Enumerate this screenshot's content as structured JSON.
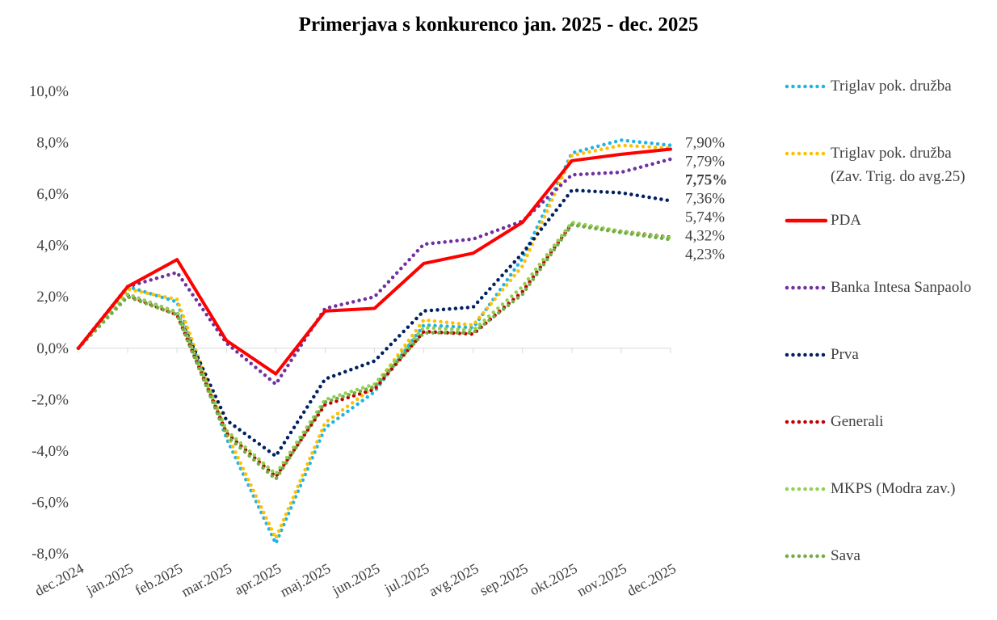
{
  "chart_data": {
    "type": "line",
    "title": "Primerjava s konkurenco jan. 2025 - dec. 2025",
    "categories": [
      "dec.2024",
      "jan.2025",
      "feb.2025",
      "mar.2025",
      "apr.2025",
      "maj.2025",
      "jun.2025",
      "jul.2025",
      "avg.2025",
      "sep.2025",
      "okt.2025",
      "nov.2025",
      "dec.2025"
    ],
    "ylim": [
      -8,
      10
    ],
    "yticks": [
      {
        "value": -8,
        "label": "-8,0%"
      },
      {
        "value": -6,
        "label": "-6,0%"
      },
      {
        "value": -4,
        "label": "-4,0%"
      },
      {
        "value": -2,
        "label": "-2,0%"
      },
      {
        "value": 0,
        "label": "0,0%"
      },
      {
        "value": 2,
        "label": "2,0%"
      },
      {
        "value": 4,
        "label": "4,0%"
      },
      {
        "value": 6,
        "label": "6,0%"
      },
      {
        "value": 8,
        "label": "8,0%"
      },
      {
        "value": 10,
        "label": "10,0%"
      }
    ],
    "legend": "right",
    "series": [
      {
        "name": "Triglav pok. družba",
        "color": "#1fb4e6",
        "line_style": "dotted",
        "values": [
          0,
          2.4,
          1.8,
          -3.5,
          -7.6,
          -3.1,
          -1.7,
          0.9,
          0.8,
          3.5,
          7.6,
          8.1,
          7.9
        ],
        "value_labels": [
          null,
          null,
          null,
          null,
          null,
          null,
          null,
          null,
          null,
          null,
          null,
          null,
          "7,90%"
        ]
      },
      {
        "name": "Triglav pok. družba (Zav. Trig. do avg.25)",
        "color": "#ffc000",
        "line_style": "dotted",
        "values": [
          0,
          2.3,
          1.9,
          -3.3,
          -7.4,
          -2.9,
          -1.5,
          1.1,
          0.9,
          3.2,
          7.5,
          7.9,
          7.79
        ],
        "value_labels": [
          null,
          null,
          null,
          null,
          null,
          null,
          null,
          null,
          null,
          null,
          null,
          null,
          "7,79%"
        ]
      },
      {
        "name": "PDA",
        "color": "#ff0000",
        "line_style": "solid",
        "values": [
          0,
          2.4,
          3.45,
          0.3,
          -1.0,
          1.45,
          1.55,
          3.3,
          3.7,
          4.9,
          7.3,
          7.55,
          7.75
        ],
        "value_labels": [
          null,
          null,
          null,
          null,
          null,
          null,
          null,
          null,
          null,
          null,
          null,
          null,
          "7,75%"
        ]
      },
      {
        "name": "Banka Intesa Sanpaolo",
        "color": "#7030a0",
        "line_style": "dotted",
        "values": [
          0,
          2.4,
          2.95,
          0.2,
          -1.4,
          1.55,
          2.0,
          4.05,
          4.25,
          4.95,
          6.75,
          6.85,
          7.36
        ],
        "value_labels": [
          null,
          null,
          null,
          null,
          null,
          null,
          null,
          null,
          null,
          null,
          null,
          null,
          "7,36%"
        ]
      },
      {
        "name": "Prva",
        "color": "#002060",
        "line_style": "dotted",
        "values": [
          0,
          2.1,
          1.4,
          -2.8,
          -4.2,
          -1.2,
          -0.5,
          1.45,
          1.6,
          3.7,
          6.15,
          6.05,
          5.74
        ],
        "value_labels": [
          null,
          null,
          null,
          null,
          null,
          null,
          null,
          null,
          null,
          null,
          null,
          null,
          "5,74%"
        ]
      },
      {
        "name": "Generali",
        "color": "#c00000",
        "line_style": "dotted",
        "values": [
          0,
          2.05,
          1.3,
          -3.3,
          -5.0,
          -2.2,
          -1.6,
          0.65,
          0.55,
          2.2,
          4.85,
          4.55,
          4.32
        ],
        "value_labels": [
          null,
          null,
          null,
          null,
          null,
          null,
          null,
          null,
          null,
          null,
          null,
          null,
          "4,32%"
        ]
      },
      {
        "name": "MKPS (Modra zav.)",
        "color": "#92d050",
        "line_style": "dotted",
        "values": [
          0,
          2.1,
          1.4,
          -3.2,
          -4.9,
          -2.0,
          -1.4,
          0.8,
          0.7,
          2.4,
          4.9,
          4.55,
          4.3
        ]
      },
      {
        "name": "Sava",
        "color": "#70ad47",
        "line_style": "dotted",
        "values": [
          0,
          2.0,
          1.3,
          -3.4,
          -5.1,
          -2.1,
          -1.5,
          0.6,
          0.6,
          2.1,
          4.8,
          4.5,
          4.23
        ],
        "value_labels": [
          null,
          null,
          null,
          null,
          null,
          null,
          null,
          null,
          null,
          null,
          null,
          null,
          "4,23%"
        ]
      }
    ]
  }
}
